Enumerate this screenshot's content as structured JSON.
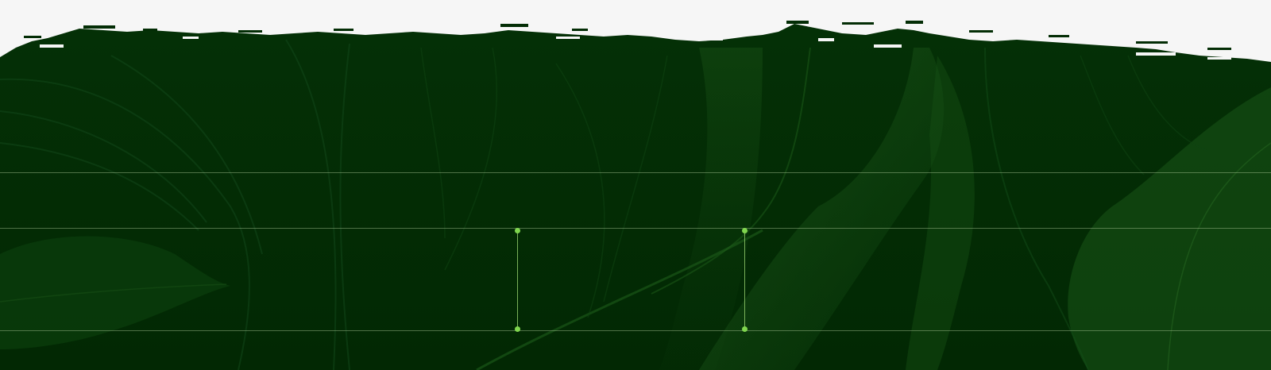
{
  "colors": {
    "sky": "#f6f6f6",
    "foliage_dark": "#032d05",
    "foliage_mid": "#0a3f0c",
    "foliage_light": "#1b5a19",
    "guide_line": "#9fbf8c",
    "node_accent": "#7fd64e"
  },
  "scene": {
    "type": "decorative-foliage-banner",
    "edge": "torn-paper"
  },
  "guides": {
    "horizontal_count": 3,
    "connector_count": 2,
    "node_count": 4
  }
}
